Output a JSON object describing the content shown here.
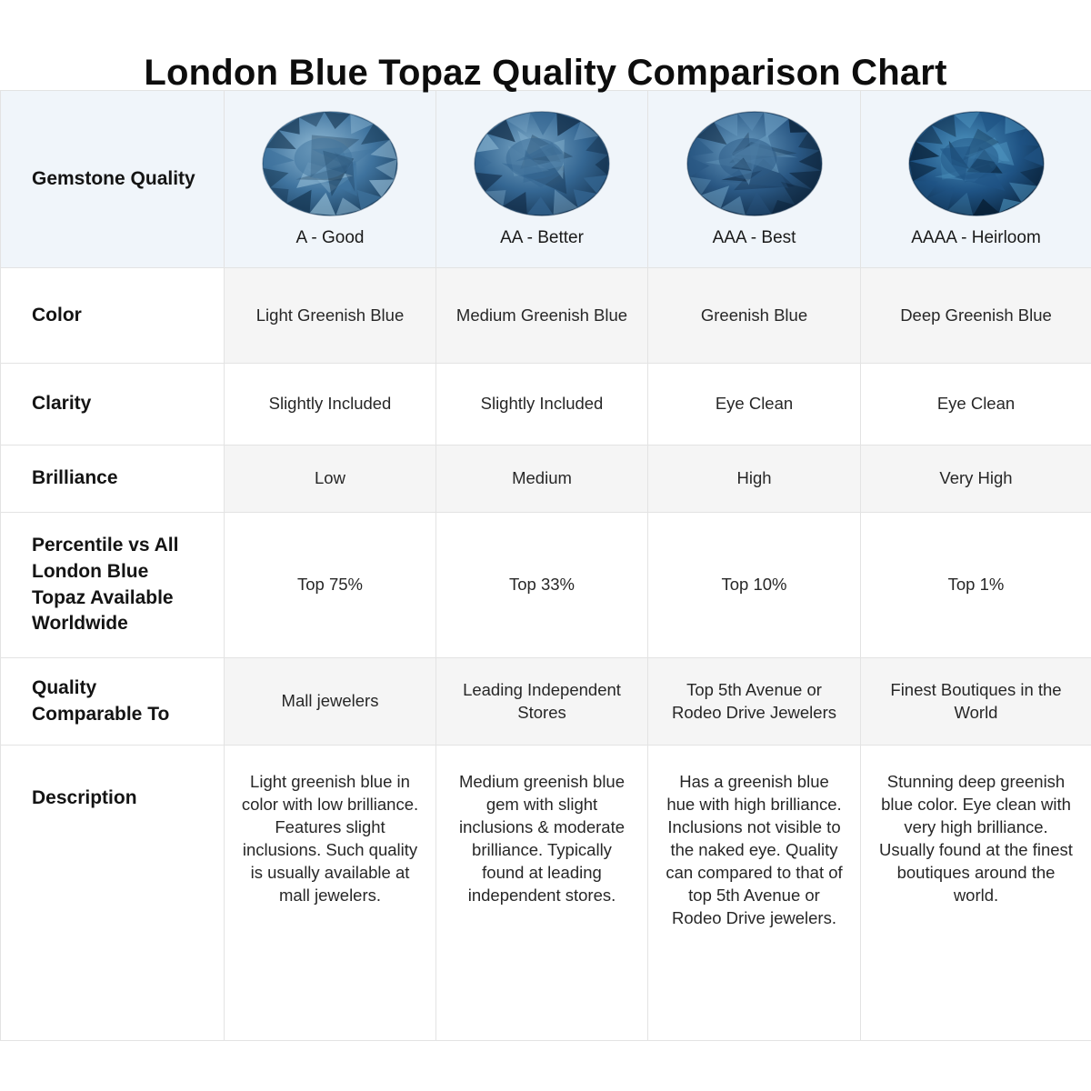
{
  "title": "London Blue Topaz Quality Comparison Chart",
  "table": {
    "row_labels": {
      "quality": "Gemstone Quality",
      "color": "Color",
      "clarity": "Clarity",
      "brilliance": "Brilliance",
      "percentile": "Percentile vs All London Blue Topaz Available Worldwide",
      "comparable": "Quality Comparable To",
      "description": "Description"
    },
    "columns": [
      {
        "grade": "A - Good",
        "gem_icon": "oval-london-blue-topaz-light",
        "gem_colors": {
          "light": "#93bcd6",
          "base": "#3f739e",
          "dark": "#15344f"
        },
        "color": "Light Greenish Blue",
        "clarity": "Slightly Included",
        "brilliance": "Low",
        "percentile": "Top 75%",
        "comparable": "Mall jewelers",
        "description": "Light greenish blue in color with low brilliance. Features slight inclusions. Such quality is usually available at mall jewelers."
      },
      {
        "grade": "AA - Better",
        "gem_icon": "oval-london-blue-topaz-medium",
        "gem_colors": {
          "light": "#7eabc9",
          "base": "#346692",
          "dark": "#112b45"
        },
        "color": "Medium Greenish Blue",
        "clarity": "Slightly Included",
        "brilliance": "Medium",
        "percentile": "Top 33%",
        "comparable": "Leading Independent Stores",
        "description": "Medium greenish blue gem with slight inclusions & moderate brilliance. Typically found at leading independent stores."
      },
      {
        "grade": "AAA - Best",
        "gem_icon": "oval-london-blue-topaz-dark",
        "gem_colors": {
          "light": "#6da0c4",
          "base": "#2a5884",
          "dark": "#0c2238"
        },
        "color": "Greenish Blue",
        "clarity": "Eye Clean",
        "brilliance": "High",
        "percentile": "Top 10%",
        "comparable": "Top 5th Avenue or Rodeo Drive Jewelers",
        "description": "Has a greenish blue hue with high brilliance. Inclusions not visible to the naked eye. Quality can compared to that of top 5th Avenue or Rodeo Drive jewelers."
      },
      {
        "grade": "AAAA - Heirloom",
        "gem_icon": "oval-london-blue-topaz-deep",
        "gem_colors": {
          "light": "#4f96c1",
          "base": "#1f5384",
          "dark": "#071e33"
        },
        "color": "Deep Greenish Blue",
        "clarity": "Eye Clean",
        "brilliance": "Very High",
        "percentile": "Top 1%",
        "comparable": "Finest Boutiques in the World",
        "description": "Stunning deep greenish blue color. Eye clean with very high brilliance. Usually found at the finest boutiques around the world."
      }
    ]
  },
  "colors": {
    "header_row_bg": "#f0f5fa",
    "alt_row_bg": "#f5f5f5",
    "white_row_bg": "#ffffff",
    "border": "#e3e3e3",
    "title_text": "#0d0d0d",
    "body_text": "#272727"
  },
  "chart_data": {
    "type": "table",
    "title": "London Blue Topaz Quality Comparison Chart",
    "columns": [
      "Gemstone Quality",
      "A - Good",
      "AA - Better",
      "AAA - Best",
      "AAAA - Heirloom"
    ],
    "rows": [
      [
        "Color",
        "Light Greenish Blue",
        "Medium Greenish Blue",
        "Greenish Blue",
        "Deep Greenish Blue"
      ],
      [
        "Clarity",
        "Slightly Included",
        "Slightly Included",
        "Eye Clean",
        "Eye Clean"
      ],
      [
        "Brilliance",
        "Low",
        "Medium",
        "High",
        "Very High"
      ],
      [
        "Percentile vs All London Blue Topaz Available Worldwide",
        "Top 75%",
        "Top 33%",
        "Top 10%",
        "Top 1%"
      ],
      [
        "Quality Comparable To",
        "Mall jewelers",
        "Leading Independent Stores",
        "Top 5th Avenue or Rodeo Drive Jewelers",
        "Finest Boutiques in the World"
      ],
      [
        "Description",
        "Light greenish blue in color with low brilliance. Features slight inclusions. Such quality is usually available at mall jewelers.",
        "Medium greenish blue gem with slight inclusions & moderate brilliance. Typically found at leading independent stores.",
        "Has a greenish blue hue with high brilliance. Inclusions not visible to the naked eye. Quality can compared to that of top 5th Avenue or Rodeo Drive jewelers.",
        "Stunning deep greenish blue color. Eye clean with very high brilliance. Usually found at the finest boutiques around the world."
      ]
    ],
    "layout": {
      "header_row_has_gem_images": true,
      "alternating_data_cell_shading": true
    }
  }
}
